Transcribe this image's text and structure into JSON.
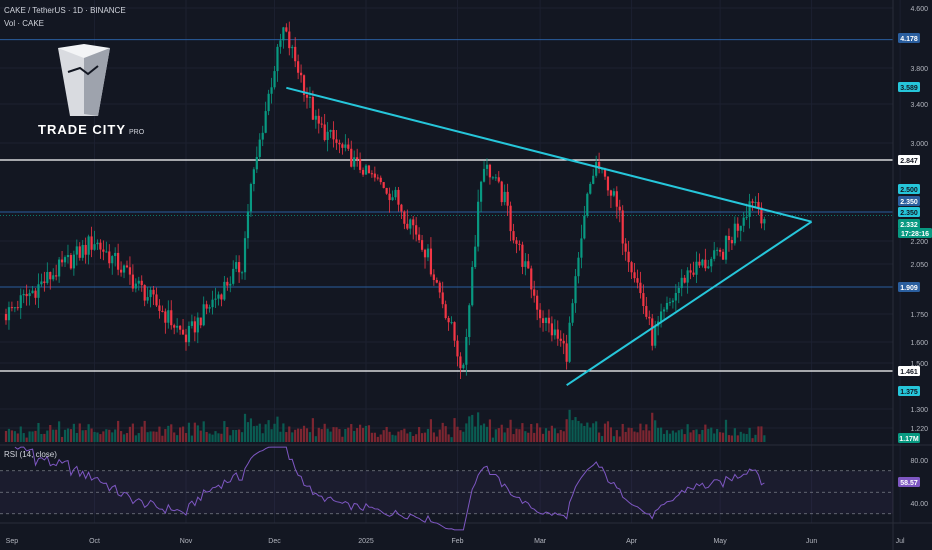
{
  "header": {
    "symbol_line": "CAKE / TetherUS · 1D · BINANCE",
    "vol_line": "Vol · CAKE"
  },
  "logo": {
    "name": "TRADE CITY",
    "suffix": "PRO"
  },
  "rsi_label": "RSI (14, close)",
  "price_axis": {
    "ticks": [
      "4.600",
      "3.800",
      "3.400",
      "3.000",
      "2.200",
      "2.050",
      "1.750",
      "1.600",
      "1.500",
      "1.300",
      "1.220"
    ]
  },
  "badges": [
    {
      "id": "badge-4178",
      "text": "4.178",
      "bg": "#2a5e9e",
      "fg": "#ffffff"
    },
    {
      "id": "badge-3589",
      "text": "3.589",
      "bg": "#26c6da",
      "fg": "#131722"
    },
    {
      "id": "badge-2847",
      "text": "2.847",
      "bg": "#ffffff",
      "fg": "#131722"
    },
    {
      "id": "badge-2500",
      "text": "2.500",
      "bg": "#26c6da",
      "fg": "#131722"
    },
    {
      "id": "badge-2350a",
      "text": "2.350",
      "bg": "#2a5e9e",
      "fg": "#ffffff"
    },
    {
      "id": "badge-2350b",
      "text": "2.350",
      "bg": "#26c6da",
      "fg": "#131722"
    },
    {
      "id": "badge-2332",
      "text": "2.332",
      "bg": "#089981",
      "fg": "#ffffff"
    },
    {
      "id": "badge-countdown",
      "text": "17:28:16",
      "bg": "#089981",
      "fg": "#ffffff"
    },
    {
      "id": "badge-1909",
      "text": "1.909",
      "bg": "#2a5e9e",
      "fg": "#ffffff"
    },
    {
      "id": "badge-1461",
      "text": "1.461",
      "bg": "#ffffff",
      "fg": "#131722"
    },
    {
      "id": "badge-1375",
      "text": "1.375",
      "bg": "#26c6da",
      "fg": "#131722"
    },
    {
      "id": "badge-vol",
      "text": "1.17M",
      "bg": "#089981",
      "fg": "#ffffff"
    },
    {
      "id": "badge-rsi",
      "text": "58.57",
      "bg": "#7e57c2",
      "fg": "#ffffff"
    }
  ],
  "rsi_axis": {
    "ticks": [
      "80.00",
      "40.00"
    ]
  },
  "time_axis": {
    "labels": [
      "Sep",
      "Oct",
      "Nov",
      "Dec",
      "2025",
      "Feb",
      "Mar",
      "Apr",
      "May",
      "Jun",
      "Jul"
    ]
  },
  "colors": {
    "background": "#131722",
    "up": "#089981",
    "down": "#f23645",
    "trendline": "#26c6da",
    "level_white": "#ffffff",
    "level_blue": "#2a5e9e",
    "rsi": "#7e57c2"
  },
  "chart_data": {
    "type": "candlestick",
    "symbol": "CAKE / TetherUS",
    "timeframe": "1D",
    "exchange": "BINANCE",
    "last_price": 2.332,
    "horizontal_levels": [
      {
        "value": 4.178,
        "color": "blue"
      },
      {
        "value": 2.847,
        "color": "white"
      },
      {
        "value": 2.35,
        "color": "blue"
      },
      {
        "value": 1.909,
        "color": "blue"
      },
      {
        "value": 1.461,
        "color": "white"
      }
    ],
    "triangle": {
      "upper_line": [
        {
          "date": "2024-12-05",
          "value": 3.58
        },
        {
          "date": "2025-06-01",
          "value": 2.3
        }
      ],
      "lower_line": [
        {
          "date": "2025-03-10",
          "value": 1.4
        },
        {
          "date": "2025-06-01",
          "value": 2.3
        }
      ]
    },
    "key_closes": [
      {
        "date": "2024-09-01",
        "value": 1.75
      },
      {
        "date": "2024-10-01",
        "value": 2.2
      },
      {
        "date": "2024-10-15",
        "value": 1.93
      },
      {
        "date": "2024-11-01",
        "value": 1.62
      },
      {
        "date": "2024-11-20",
        "value": 2.05
      },
      {
        "date": "2024-12-04",
        "value": 4.3
      },
      {
        "date": "2024-12-15",
        "value": 3.2
      },
      {
        "date": "2025-01-01",
        "value": 2.7
      },
      {
        "date": "2025-01-20",
        "value": 2.2
      },
      {
        "date": "2025-02-03",
        "value": 1.45
      },
      {
        "date": "2025-02-10",
        "value": 2.8
      },
      {
        "date": "2025-03-01",
        "value": 1.75
      },
      {
        "date": "2025-03-10",
        "value": 1.55
      },
      {
        "date": "2025-03-20",
        "value": 2.8
      },
      {
        "date": "2025-04-08",
        "value": 1.62
      },
      {
        "date": "2025-04-20",
        "value": 2.0
      },
      {
        "date": "2025-05-01",
        "value": 2.1
      },
      {
        "date": "2025-05-12",
        "value": 2.45
      },
      {
        "date": "2025-05-16",
        "value": 2.332
      }
    ],
    "volume_last": "1.17M",
    "rsi": {
      "period": 14,
      "source": "close",
      "last": 58.57,
      "bands": [
        70,
        50,
        30
      ]
    }
  }
}
